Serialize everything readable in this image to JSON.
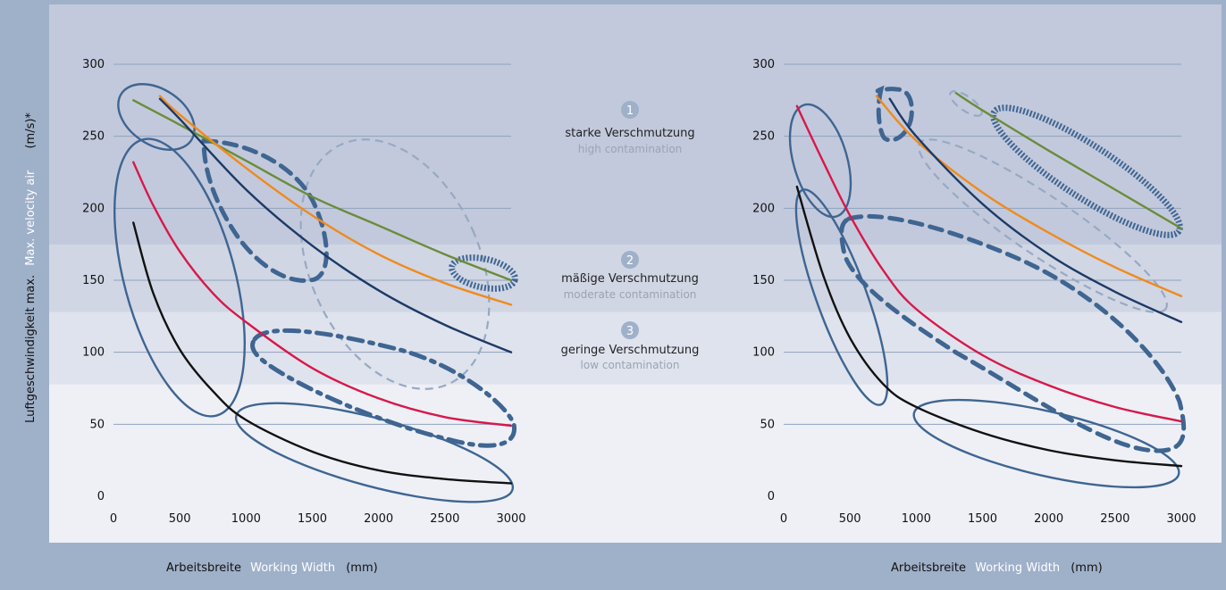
{
  "yaxis_label": {
    "de": "Luftgeschwindigkeit max.",
    "en": "Max. velocity air",
    "unit": "(m/s)*"
  },
  "xaxis_label": {
    "de": "Arbeitsbreite",
    "en": "Working Width",
    "unit": "(mm)"
  },
  "zones": [
    {
      "number": "1",
      "de": "starke Verschmutzung",
      "en": "high contamination"
    },
    {
      "number": "2",
      "de": "mäßige Verschmutzung",
      "en": "moderate contamination"
    },
    {
      "number": "3",
      "de": "geringe Verschmutzung",
      "en": "low contamination"
    }
  ],
  "zone_thresholds": [
    175,
    128,
    78
  ],
  "colors": {
    "outer": "#9fb0c9",
    "zone1": "#c2c9dc",
    "zone2": "#d0d6e4",
    "zone3": "#dfe3ed",
    "zone_low": "#eef0f6",
    "grid": "#8fa2bd",
    "ellipse": "#3f6591",
    "ellipse_light": "#97a9c3",
    "green": "#6b8c3a",
    "orange": "#f08a1c",
    "navy": "#1c3a66",
    "red": "#d8184a",
    "black": "#111111",
    "legend_en": "#9aa4b3",
    "legend_de": "#222222",
    "badge": "#9fb0c9"
  },
  "chart_data": [
    {
      "type": "line",
      "xlim": [
        0,
        3000
      ],
      "ylim": [
        0,
        300
      ],
      "xticks": [
        0,
        500,
        1000,
        1500,
        2000,
        2500,
        3000
      ],
      "yticks": [
        0,
        50,
        100,
        150,
        200,
        250,
        300
      ],
      "grid": true,
      "series": [
        {
          "color": "green",
          "x": [
            150,
            500,
            1000,
            1500,
            2000,
            2500,
            3000
          ],
          "y": [
            275,
            258,
            233,
            208,
            188,
            168,
            150
          ]
        },
        {
          "color": "orange",
          "x": [
            350,
            500,
            1000,
            1500,
            2000,
            2500,
            3000
          ],
          "y": [
            278,
            265,
            228,
            195,
            168,
            148,
            133
          ]
        },
        {
          "color": "navy",
          "x": [
            350,
            500,
            1000,
            1500,
            2000,
            2500,
            3000
          ],
          "y": [
            276,
            262,
            213,
            174,
            143,
            119,
            100
          ]
        },
        {
          "color": "red",
          "x": [
            150,
            300,
            500,
            750,
            1000,
            1500,
            2000,
            2500,
            3000
          ],
          "y": [
            232,
            202,
            170,
            141,
            121,
            89,
            68,
            55,
            49
          ]
        },
        {
          "color": "black",
          "x": [
            150,
            300,
            500,
            750,
            1000,
            1500,
            2000,
            2500,
            3000
          ],
          "y": [
            190,
            141,
            102,
            73,
            53,
            31,
            18,
            12,
            9
          ]
        }
      ]
    },
    {
      "type": "line",
      "xlim": [
        0,
        3000
      ],
      "ylim": [
        0,
        300
      ],
      "xticks": [
        0,
        500,
        1000,
        1500,
        2000,
        2500,
        3000
      ],
      "yticks": [
        0,
        50,
        100,
        150,
        200,
        250,
        300
      ],
      "grid": true,
      "series": [
        {
          "color": "green",
          "x": [
            1300,
            1500,
            2000,
            2500,
            3000
          ],
          "y": [
            280,
            268,
            240,
            213,
            186
          ]
        },
        {
          "color": "orange",
          "x": [
            700,
            1000,
            1500,
            2000,
            2500,
            3000
          ],
          "y": [
            278,
            247,
            211,
            183,
            159,
            139
          ]
        },
        {
          "color": "navy",
          "x": [
            800,
            1000,
            1500,
            2000,
            2500,
            3000
          ],
          "y": [
            276,
            250,
            203,
            168,
            142,
            121
          ]
        },
        {
          "color": "red",
          "x": [
            100,
            300,
            500,
            750,
            1000,
            1500,
            2000,
            2500,
            3000
          ],
          "y": [
            271,
            232,
            195,
            157,
            130,
            98,
            77,
            62,
            52
          ]
        },
        {
          "color": "black",
          "x": [
            100,
            300,
            500,
            750,
            1000,
            1500,
            2000,
            2500,
            3000
          ],
          "y": [
            215,
            153,
            110,
            78,
            62,
            44,
            32,
            25,
            21
          ]
        }
      ]
    }
  ]
}
